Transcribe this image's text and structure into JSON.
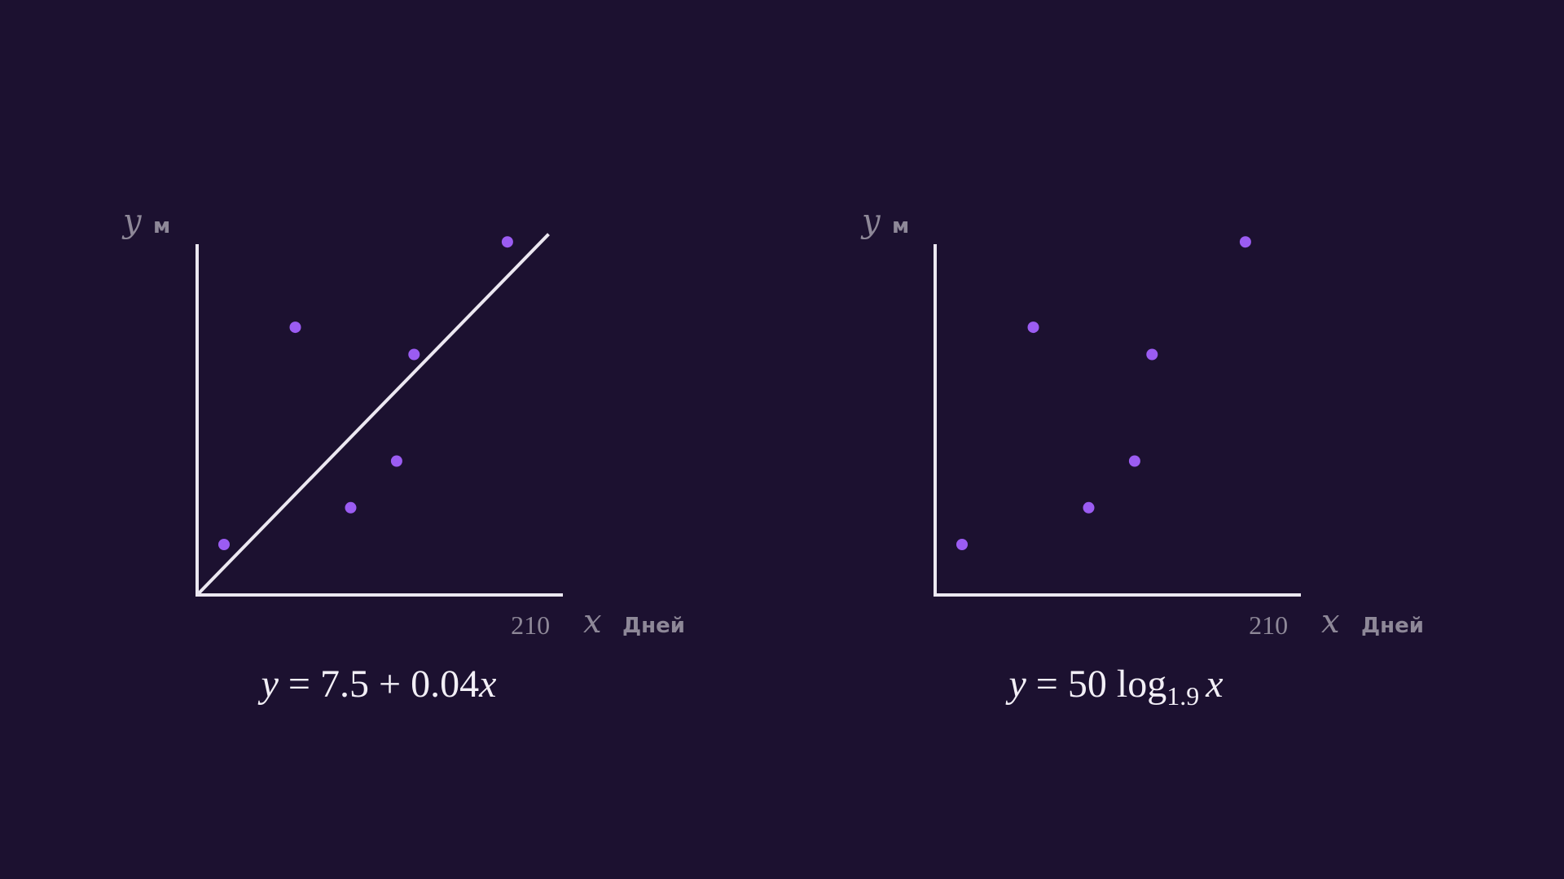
{
  "chart_data": [
    {
      "type": "scatter",
      "xlabel": "x",
      "x_unit": "Дней",
      "ylabel": "y",
      "y_unit": "м",
      "x_ticks": [
        210
      ],
      "xlim": [
        0,
        230
      ],
      "ylim": [
        0,
        18
      ],
      "fit_line": {
        "intercept": 7.5,
        "slope": 0.04
      },
      "formula": {
        "lhs": "y",
        "eq": " = ",
        "rhs": "7.5 + 0.04",
        "var": "x"
      },
      "points": [
        {
          "x": 17,
          "y": 2.6
        },
        {
          "x": 62,
          "y": 13.8
        },
        {
          "x": 97,
          "y": 4.5
        },
        {
          "x": 126,
          "y": 6.9
        },
        {
          "x": 137,
          "y": 12.4
        },
        {
          "x": 196,
          "y": 18.2
        }
      ]
    },
    {
      "type": "scatter",
      "xlabel": "x",
      "x_unit": "Дней",
      "ylabel": "y",
      "y_unit": "м",
      "x_ticks": [
        210
      ],
      "xlim": [
        0,
        230
      ],
      "ylim": [
        0,
        18
      ],
      "formula": {
        "lhs": "y",
        "eq": " = ",
        "coef": "50 log",
        "base": "1.9",
        "var": "x"
      },
      "points": [
        {
          "x": 17,
          "y": 2.6
        },
        {
          "x": 62,
          "y": 13.8
        },
        {
          "x": 97,
          "y": 4.5
        },
        {
          "x": 126,
          "y": 6.9
        },
        {
          "x": 137,
          "y": 12.4
        },
        {
          "x": 196,
          "y": 18.2
        }
      ]
    }
  ],
  "colors": {
    "background": "#1c1130",
    "point": "#9b5cf2",
    "axis": "#ece8f1",
    "label": "#8e8898"
  }
}
